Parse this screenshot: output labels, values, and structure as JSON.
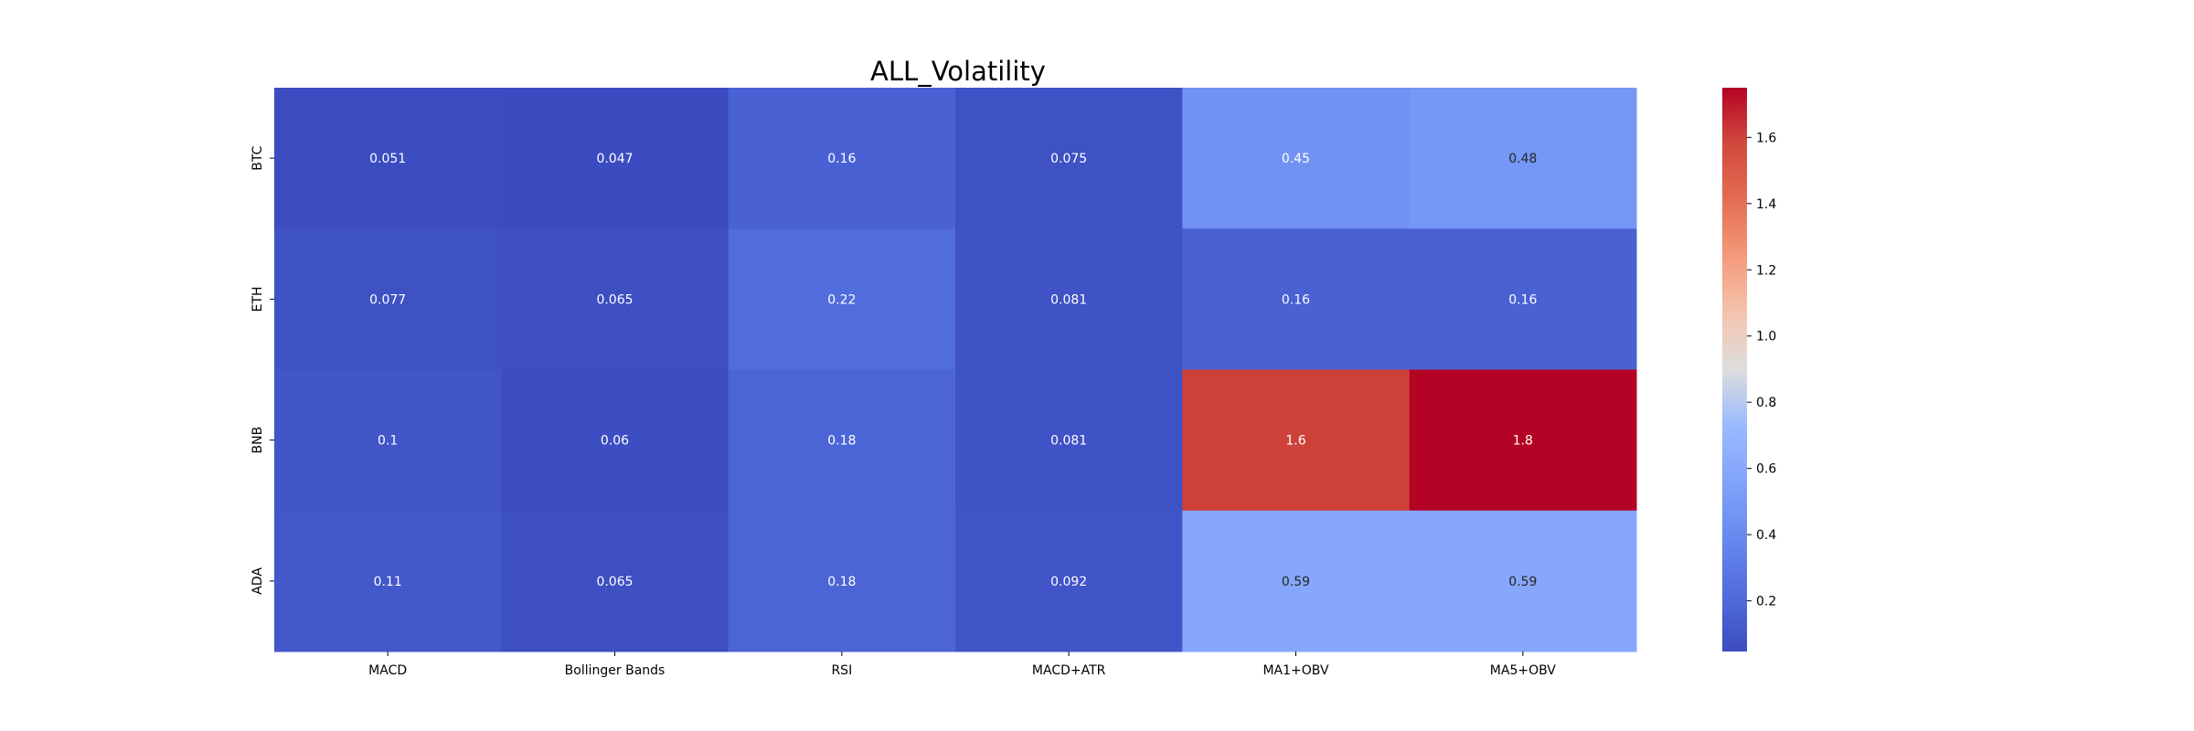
{
  "chart_data": {
    "type": "heatmap",
    "title": "ALL_Volatility",
    "xlabel": "",
    "ylabel": "",
    "columns": [
      "MACD",
      "Bollinger Bands",
      "RSI",
      "MACD+ATR",
      "MA1+OBV",
      "MA5+OBV"
    ],
    "rows": [
      "BTC",
      "ETH",
      "BNB",
      "ADA"
    ],
    "values": [
      [
        0.051,
        0.047,
        0.16,
        0.075,
        0.45,
        0.48
      ],
      [
        0.077,
        0.065,
        0.22,
        0.081,
        0.16,
        0.16
      ],
      [
        0.1,
        0.06,
        0.18,
        0.081,
        1.6,
        1.8
      ],
      [
        0.11,
        0.065,
        0.18,
        0.092,
        0.59,
        0.59
      ]
    ],
    "cell_labels": [
      [
        "0.051",
        "0.047",
        "0.16",
        "0.075",
        "0.45",
        "0.48"
      ],
      [
        "0.077",
        "0.065",
        "0.22",
        "0.081",
        "0.16",
        "0.16"
      ],
      [
        "0.1",
        "0.06",
        "0.18",
        "0.081",
        "1.6",
        "1.8"
      ],
      [
        "0.11",
        "0.065",
        "0.18",
        "0.092",
        "0.59",
        "0.59"
      ]
    ],
    "colormap": "coolwarm",
    "vmin": 0.047,
    "vmax": 1.75,
    "colorbar": {
      "ticks": [
        0.2,
        0.4,
        0.6,
        0.8,
        1.0,
        1.2,
        1.4,
        1.6
      ],
      "tick_labels": [
        "0.2",
        "0.4",
        "0.6",
        "0.8",
        "1.0",
        "1.2",
        "1.4",
        "1.6"
      ]
    },
    "colors": {
      "low": "#3b4cc0",
      "mid": "#dddddd",
      "high": "#b40426",
      "text_light": "#ffffff",
      "text_dark": "#262626"
    }
  }
}
